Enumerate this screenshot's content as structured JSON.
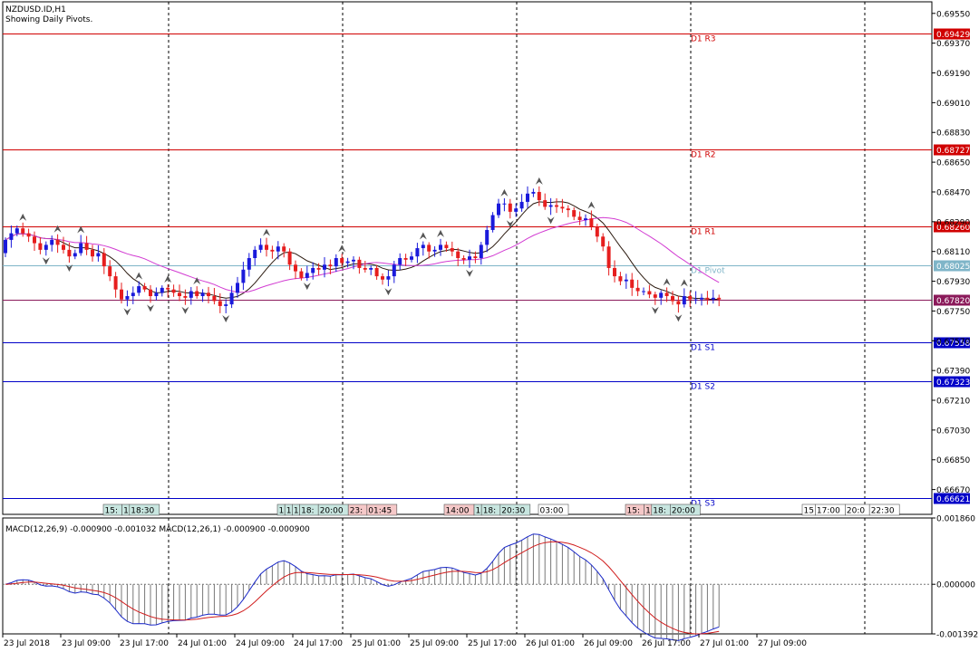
{
  "header": {
    "symbol": "NZDUSD.ID,H1",
    "subtitle": "Showing Daily Pivots."
  },
  "colors": {
    "bull": "#1a1adb",
    "bear": "#e61e1e",
    "resistance": "#d00000",
    "support": "#0000c8",
    "pivot": "#7fb5c8",
    "current": "#8b1a5a",
    "ma_fast": "#2b1a0f",
    "ma_slow": "#d23cd2",
    "macd_main": "#1a28c8",
    "macd_signal": "#d01c1c"
  },
  "chart_data": [
    {
      "type": "candlestick",
      "panel": "price",
      "ylim": [
        0.6652,
        0.6962
      ],
      "y_ticks": [
        "0.69550",
        "0.69370",
        "0.69190",
        "0.69010",
        "0.68830",
        "0.68650",
        "0.68470",
        "0.68290",
        "0.68110",
        "0.67930",
        "0.67750",
        "0.67570",
        "0.67390",
        "0.67210",
        "0.67030",
        "0.66850",
        "0.66670"
      ],
      "pivot_levels": [
        {
          "name": "D1 R3",
          "value": 0.69429,
          "label": "0.69429",
          "kind": "resistance"
        },
        {
          "name": "D1 R2",
          "value": 0.68727,
          "label": "0.68727",
          "kind": "resistance"
        },
        {
          "name": "D1 R1",
          "value": 0.6826,
          "label": "0.68260",
          "kind": "resistance"
        },
        {
          "name": "D1 Pivot",
          "value": 0.68025,
          "label": "0.68025",
          "kind": "pivot"
        },
        {
          "name": "",
          "value": 0.6782,
          "label": "0.67820",
          "kind": "current"
        },
        {
          "name": "D1 S1",
          "value": 0.67558,
          "label": "0.67558",
          "kind": "support"
        },
        {
          "name": "D1 S2",
          "value": 0.67323,
          "label": "0.67323",
          "kind": "support"
        },
        {
          "name": "D1 S3",
          "value": 0.66621,
          "label": "0.66621",
          "kind": "support"
        }
      ],
      "close_series": [
        0.6818,
        0.6822,
        0.6825,
        0.6822,
        0.682,
        0.6816,
        0.6812,
        0.6815,
        0.6818,
        0.6815,
        0.6812,
        0.6808,
        0.681,
        0.6816,
        0.6812,
        0.6808,
        0.681,
        0.6802,
        0.6796,
        0.6788,
        0.6782,
        0.6784,
        0.6786,
        0.679,
        0.6788,
        0.6784,
        0.6786,
        0.6789,
        0.6788,
        0.6786,
        0.6784,
        0.6783,
        0.6787,
        0.6784,
        0.6786,
        0.6784,
        0.6781,
        0.6778,
        0.6779,
        0.6786,
        0.6792,
        0.68,
        0.6807,
        0.6812,
        0.6815,
        0.6812,
        0.6811,
        0.6814,
        0.6811,
        0.6803,
        0.6799,
        0.6795,
        0.6798,
        0.6801,
        0.68,
        0.6803,
        0.6802,
        0.6807,
        0.6804,
        0.6805,
        0.6806,
        0.6801,
        0.68,
        0.6801,
        0.6796,
        0.6794,
        0.6796,
        0.6803,
        0.6807,
        0.6806,
        0.6808,
        0.6813,
        0.6815,
        0.6811,
        0.6812,
        0.6815,
        0.6813,
        0.6811,
        0.6807,
        0.6806,
        0.6808,
        0.6807,
        0.6815,
        0.6824,
        0.6833,
        0.684,
        0.684,
        0.6835,
        0.6837,
        0.6841,
        0.6846,
        0.6847,
        0.6842,
        0.6838,
        0.6839,
        0.6838,
        0.6837,
        0.6836,
        0.6832,
        0.683,
        0.6831,
        0.6826,
        0.682,
        0.6814,
        0.6801,
        0.6796,
        0.6793,
        0.6794,
        0.6789,
        0.6787,
        0.6787,
        0.6785,
        0.6783,
        0.6786,
        0.6784,
        0.6781,
        0.6779,
        0.6784,
        0.6782,
        0.6782,
        0.6783,
        0.6782,
        0.6783,
        0.6782
      ]
    },
    {
      "type": "bar",
      "panel": "macd",
      "title": "MACD(12,26,9) -0.000900 -0.001032 MACD(12,26,1) -0.000900 -0.000900",
      "ylim": [
        -0.001392,
        0.00186
      ],
      "y_ticks": [
        "0.001860",
        "0.000000",
        "-0.001392"
      ],
      "zero_value": 0.0
    }
  ],
  "x_axis": {
    "labels": [
      "23 Jul 2018",
      "23 Jul 09:00",
      "23 Jul 17:00",
      "24 Jul 01:00",
      "24 Jul 09:00",
      "24 Jul 17:00",
      "25 Jul 01:00",
      "25 Jul 09:00",
      "25 Jul 17:00",
      "26 Jul 01:00",
      "26 Jul 09:00",
      "26 Jul 17:00",
      "27 Jul 01:00",
      "27 Jul 09:00"
    ]
  },
  "event_groups": [
    {
      "items": [
        "15:",
        "1",
        "18:30"
      ],
      "colors": [
        "#c8e6e0",
        "#c8e6e0",
        "#c8e6e0"
      ]
    },
    {
      "items": [
        "1",
        "1",
        "1",
        "18:",
        "20:00",
        "23:",
        "01:45"
      ],
      "colors": [
        "#c8e6e0",
        "#c8e6e0",
        "#c8e6e0",
        "#c8e6e0",
        "#c8e6e0",
        "#f5c8c8",
        "#f5c8c8"
      ]
    },
    {
      "items": [
        "14:00",
        "1",
        "18:",
        "20:30"
      ],
      "colors": [
        "#f5c8c8",
        "#c8e6e0",
        "#c8e6e0",
        "#c8e6e0"
      ]
    },
    {
      "items": [
        "03:00"
      ],
      "colors": [
        "#ffffff"
      ]
    },
    {
      "items": [
        "15:",
        "1",
        "18:",
        "20:00"
      ],
      "colors": [
        "#f5c8c8",
        "#f5c8c8",
        "#c8e6e0",
        "#c8e6e0"
      ]
    },
    {
      "items": [
        "15",
        "17:00",
        "20:0",
        "22:30"
      ],
      "colors": [
        "#ffffff",
        "#ffffff",
        "#ffffff",
        "#ffffff"
      ]
    }
  ]
}
